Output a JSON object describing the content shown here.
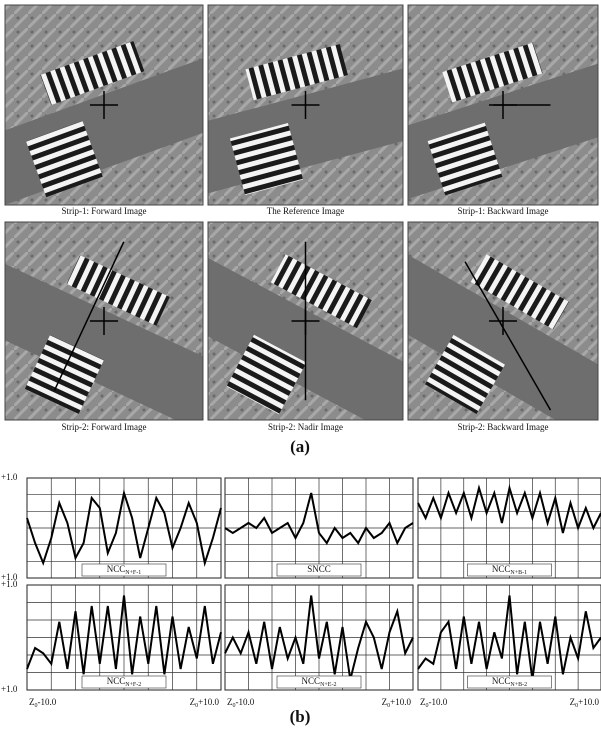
{
  "figure_a": {
    "label": "(a)",
    "panels": [
      {
        "caption": "Strip-1: Forward Image"
      },
      {
        "caption": "The Reference Image"
      },
      {
        "caption": "Strip-1: Backward Image"
      },
      {
        "caption": "Strip-2: Forward Image"
      },
      {
        "caption": "Strip-2: Nadir Image"
      },
      {
        "caption": "Strip-2: Backward Image"
      }
    ]
  },
  "figure_b": {
    "label": "(b)",
    "y_top": "+1.0",
    "y_bottom": "+1.0",
    "ylim": [
      -1,
      1
    ],
    "x_start": {
      "main": "Z",
      "sub": "0",
      "rest": "-10.0"
    },
    "x_end": {
      "main": "Z",
      "sub": "0",
      "rest": "+10.0"
    },
    "plots": [
      {
        "name": {
          "main": "NCC",
          "sub": "N+F-1"
        },
        "values": [
          0.2,
          -0.3,
          -0.7,
          -0.2,
          0.5,
          0.1,
          -0.6,
          -0.3,
          0.6,
          0.4,
          -0.5,
          -0.1,
          0.7,
          0.2,
          -0.6,
          0.0,
          0.6,
          0.3,
          -0.4,
          0.0,
          0.5,
          0.1,
          -0.7,
          -0.2,
          0.4
        ]
      },
      {
        "name": {
          "main": "SNCC"
        },
        "values": [
          0.0,
          -0.1,
          0.0,
          0.1,
          0.0,
          0.2,
          -0.1,
          0.0,
          0.1,
          -0.2,
          0.1,
          0.7,
          -0.1,
          -0.3,
          0.0,
          -0.2,
          -0.1,
          -0.3,
          0.0,
          -0.2,
          -0.1,
          0.1,
          -0.3,
          0.0,
          0.1
        ]
      },
      {
        "name": {
          "main": "NCC",
          "sub": "N+B-1"
        },
        "values": [
          0.5,
          0.2,
          0.6,
          0.2,
          0.7,
          0.3,
          0.7,
          0.2,
          0.8,
          0.3,
          0.7,
          0.1,
          0.8,
          0.3,
          0.7,
          0.2,
          0.7,
          0.1,
          0.6,
          -0.1,
          0.5,
          0.0,
          0.4,
          0.0,
          0.3
        ]
      },
      {
        "name": {
          "main": "NCC",
          "sub": "N+F-2"
        },
        "values": [
          -0.6,
          -0.2,
          -0.3,
          -0.5,
          0.3,
          -0.6,
          0.5,
          -0.7,
          0.6,
          -0.5,
          0.6,
          -0.6,
          0.8,
          -0.7,
          0.4,
          -0.5,
          0.6,
          -0.7,
          0.4,
          -0.6,
          0.2,
          -0.4,
          0.6,
          -0.5,
          0.1
        ]
      },
      {
        "name": {
          "main": "NCC",
          "sub": "N+E-2"
        },
        "values": [
          -0.3,
          0.0,
          -0.3,
          0.1,
          -0.5,
          0.3,
          -0.6,
          0.2,
          -0.4,
          0.0,
          -0.5,
          0.8,
          -0.4,
          0.3,
          -0.7,
          0.2,
          -0.8,
          -0.2,
          0.3,
          0.0,
          -0.6,
          0.1,
          0.5,
          -0.3,
          0.0
        ]
      },
      {
        "name": {
          "main": "NCC",
          "sub": "N+B-2"
        },
        "values": [
          -0.6,
          -0.4,
          -0.5,
          0.1,
          0.3,
          -0.6,
          0.4,
          -0.5,
          0.3,
          -0.6,
          0.1,
          -0.4,
          0.8,
          -0.7,
          0.3,
          -0.8,
          0.3,
          -0.5,
          0.4,
          -0.7,
          0.0,
          -0.4,
          0.5,
          -0.2,
          0.0
        ]
      }
    ]
  }
}
